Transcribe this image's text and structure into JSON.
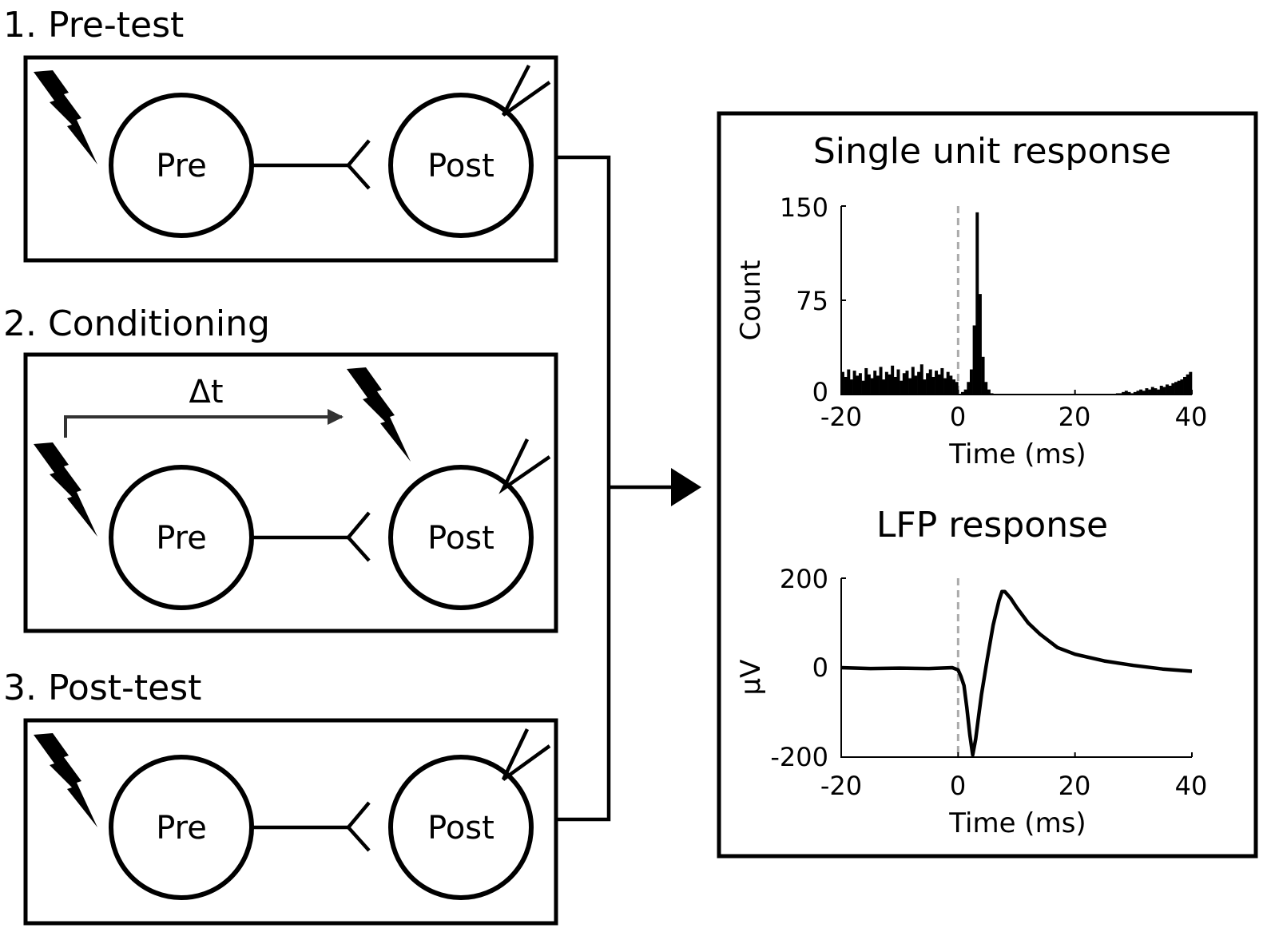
{
  "stages": [
    {
      "label": "1. Pre-test",
      "pre_label": "Pre",
      "post_label": "Post"
    },
    {
      "label": "2. Conditioning",
      "pre_label": "Pre",
      "post_label": "Post",
      "delay_label": "Δt"
    },
    {
      "label": "3. Post-test",
      "pre_label": "Pre",
      "post_label": "Post"
    }
  ],
  "colors": {
    "stroke": "#000000",
    "stim_marker": "#aaaaaa",
    "delay_arrow": "#333333"
  },
  "chart_data": [
    {
      "type": "bar",
      "title": "Single unit response",
      "xlabel": "Time (ms)",
      "ylabel": "Count",
      "xlim": [
        -20,
        40
      ],
      "ylim": [
        0,
        150
      ],
      "xticks": [
        "-20",
        "0",
        "20",
        "40"
      ],
      "yticks": [
        "0",
        "75",
        "150"
      ],
      "stimulus_time": 0,
      "bin_width": 0.5,
      "x": [
        -20,
        -19.5,
        -19,
        -18.5,
        -18,
        -17.5,
        -17,
        -16.5,
        -16,
        -15.5,
        -15,
        -14.5,
        -14,
        -13.5,
        -13,
        -12.5,
        -12,
        -11.5,
        -11,
        -10.5,
        -10,
        -9.5,
        -9,
        -8.5,
        -8,
        -7.5,
        -7,
        -6.5,
        -6,
        -5.5,
        -5,
        -4.5,
        -4,
        -3.5,
        -3,
        -2.5,
        -2,
        -1.5,
        -1,
        -0.5,
        0,
        0.5,
        1,
        1.5,
        2,
        2.5,
        3,
        3.5,
        4,
        4.5,
        5,
        5.5,
        6,
        6.5,
        7,
        7.5,
        8,
        8.5,
        9,
        9.5,
        10,
        10.5,
        11,
        11.5,
        12,
        12.5,
        13,
        13.5,
        14,
        14.5,
        15,
        15.5,
        16,
        16.5,
        17,
        17.5,
        18,
        18.5,
        19,
        19.5,
        20,
        20.5,
        21,
        21.5,
        22,
        22.5,
        23,
        23.5,
        24,
        24.5,
        25,
        25.5,
        26,
        26.5,
        27,
        27.5,
        28,
        28.5,
        29,
        29.5,
        30,
        30.5,
        31,
        31.5,
        32,
        32.5,
        33,
        33.5,
        34,
        34.5,
        35,
        35.5,
        36,
        36.5,
        37,
        37.5,
        38,
        38.5,
        39,
        39.5
      ],
      "values": [
        18,
        14,
        20,
        12,
        19,
        15,
        17,
        11,
        21,
        16,
        13,
        19,
        15,
        22,
        12,
        18,
        16,
        23,
        14,
        20,
        11,
        17,
        19,
        13,
        22,
        15,
        18,
        24,
        12,
        17,
        20,
        14,
        19,
        16,
        21,
        13,
        18,
        15,
        12,
        10,
        0,
        2,
        4,
        10,
        20,
        55,
        145,
        80,
        30,
        10,
        4,
        1,
        0,
        0,
        0,
        0,
        0,
        0,
        0,
        0,
        0,
        0,
        0,
        0,
        0,
        0,
        0,
        0,
        0,
        0,
        0,
        0,
        0,
        0,
        0,
        0,
        0,
        0,
        0,
        0,
        0,
        0,
        0,
        0,
        0,
        0,
        0,
        0,
        0,
        0,
        0,
        0,
        0,
        0,
        1,
        1,
        2,
        3,
        2,
        1,
        2,
        3,
        4,
        3,
        5,
        4,
        6,
        5,
        4,
        7,
        6,
        8,
        7,
        9,
        10,
        11,
        12,
        14,
        16,
        18
      ]
    },
    {
      "type": "line",
      "title": "LFP response",
      "xlabel": "Time (ms)",
      "ylabel": "μV",
      "xlim": [
        -20,
        40
      ],
      "ylim": [
        -200,
        200
      ],
      "xticks": [
        "-20",
        "0",
        "20",
        "40"
      ],
      "yticks": [
        "-200",
        "0",
        "200"
      ],
      "stimulus_time": 0,
      "x": [
        -20,
        -15,
        -10,
        -5,
        -1,
        0,
        0.5,
        1,
        1.5,
        2,
        2.5,
        3,
        3.5,
        4,
        5,
        6,
        7,
        7.5,
        8,
        9,
        10,
        12,
        14,
        17,
        20,
        25,
        30,
        35,
        40
      ],
      "values": [
        0,
        -2,
        -1,
        -2,
        0,
        -5,
        -20,
        -40,
        -90,
        -150,
        -195,
        -160,
        -110,
        -60,
        20,
        95,
        150,
        170,
        170,
        155,
        135,
        100,
        75,
        45,
        30,
        15,
        5,
        -3,
        -8
      ]
    }
  ]
}
